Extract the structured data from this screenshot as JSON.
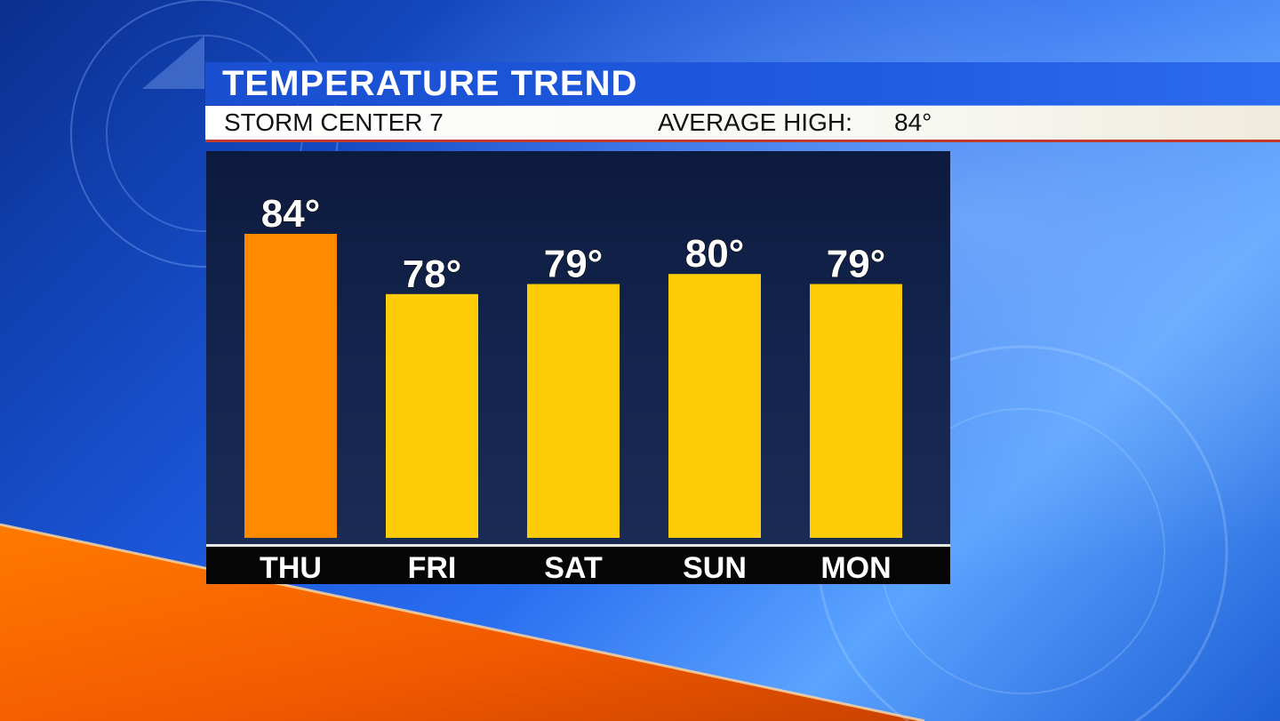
{
  "header": {
    "title": "TEMPERATURE TREND",
    "station": "STORM CENTER 7",
    "average_label": "AVERAGE HIGH:",
    "average_value": "84°"
  },
  "colors": {
    "highlight_bar": "#ff8a00",
    "normal_bar": "#ffcc0a",
    "title_bar": "#1e5ae0",
    "accent_red": "#c0392b"
  },
  "chart_data": {
    "type": "bar",
    "title": "TEMPERATURE TREND",
    "categories": [
      "THU",
      "FRI",
      "SAT",
      "SUN",
      "MON"
    ],
    "values": [
      84,
      78,
      79,
      80,
      79
    ],
    "value_labels": [
      "84°",
      "78°",
      "79°",
      "80°",
      "79°"
    ],
    "highlight_index": 0,
    "unit": "°",
    "grid": false,
    "legend": "none"
  }
}
